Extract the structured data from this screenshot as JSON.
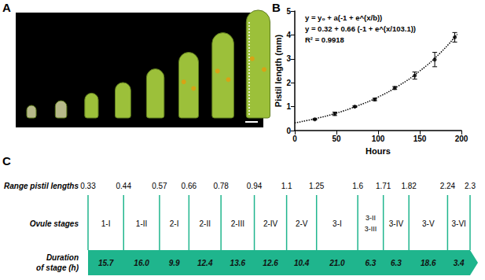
{
  "panel_labels": [
    "A",
    "B",
    "C"
  ],
  "chart_data": {
    "type": "line",
    "xlabel": "Hours",
    "ylabel": "Pistil length (mm)",
    "xlim": [
      0,
      200
    ],
    "xticks": [
      0,
      50,
      100,
      150,
      200
    ],
    "ylim": [
      0,
      5
    ],
    "yticks": [
      0,
      1,
      2,
      3,
      4,
      5
    ],
    "grid": false,
    "annotations": [
      "y = y₀ + a(-1 + e^(x/b))",
      "y = 0.32 + 0.66 (-1 + e^(x/103.1))",
      "R² = 0.9918"
    ],
    "series": [
      {
        "type": "scatter",
        "marker": "circle",
        "color": "#000000",
        "x": [
          24,
          48,
          72,
          96,
          120,
          144,
          168,
          192
        ],
        "values": [
          0.47,
          0.7,
          1.0,
          1.3,
          1.78,
          2.3,
          2.97,
          3.9
        ],
        "errors": [
          0.02,
          0.07,
          0.03,
          0.05,
          0.06,
          0.15,
          0.3,
          0.2
        ]
      },
      {
        "type": "line",
        "line_style": "dotted",
        "color": "#000000",
        "x": [
          0,
          25,
          50,
          75,
          100,
          125,
          150,
          175,
          195
        ],
        "values": [
          0.32,
          0.5,
          0.73,
          1.03,
          1.4,
          1.88,
          2.49,
          3.26,
          4.03
        ]
      }
    ]
  },
  "timeline": {
    "row_labels": [
      "Range pistil lengths",
      "Ovule stages",
      "Duration\nof stage (h)"
    ],
    "pistil_lengths": [
      "0.33",
      "0.44",
      "0.57",
      "0.66",
      "0.78",
      "0.94",
      "1.1",
      "1.25",
      "1.6",
      "1.71",
      "1.82",
      "2.24",
      "2.3"
    ],
    "segments": [
      {
        "stages": [
          "1-I"
        ],
        "duration": "15.7"
      },
      {
        "stages": [
          "1-II"
        ],
        "duration": "16.0"
      },
      {
        "stages": [
          "2-I"
        ],
        "duration": "9.9"
      },
      {
        "stages": [
          "2-II"
        ],
        "duration": "12.4"
      },
      {
        "stages": [
          "2-III"
        ],
        "duration": "13.6"
      },
      {
        "stages": [
          "2-IV"
        ],
        "duration": "12.6"
      },
      {
        "stages": [
          "2-V"
        ],
        "duration": "10.4"
      },
      {
        "stages": [
          "3-I"
        ],
        "duration": "21.0"
      },
      {
        "stages": [
          "3-II",
          "3-III"
        ],
        "duration": "6.3"
      },
      {
        "stages": [
          "3-IV"
        ],
        "duration": "6.3"
      },
      {
        "stages": [
          "3-V"
        ],
        "duration": "18.6"
      },
      {
        "stages": [
          "3-VI"
        ],
        "duration": "3.4"
      }
    ],
    "color": "#1fb58d"
  }
}
